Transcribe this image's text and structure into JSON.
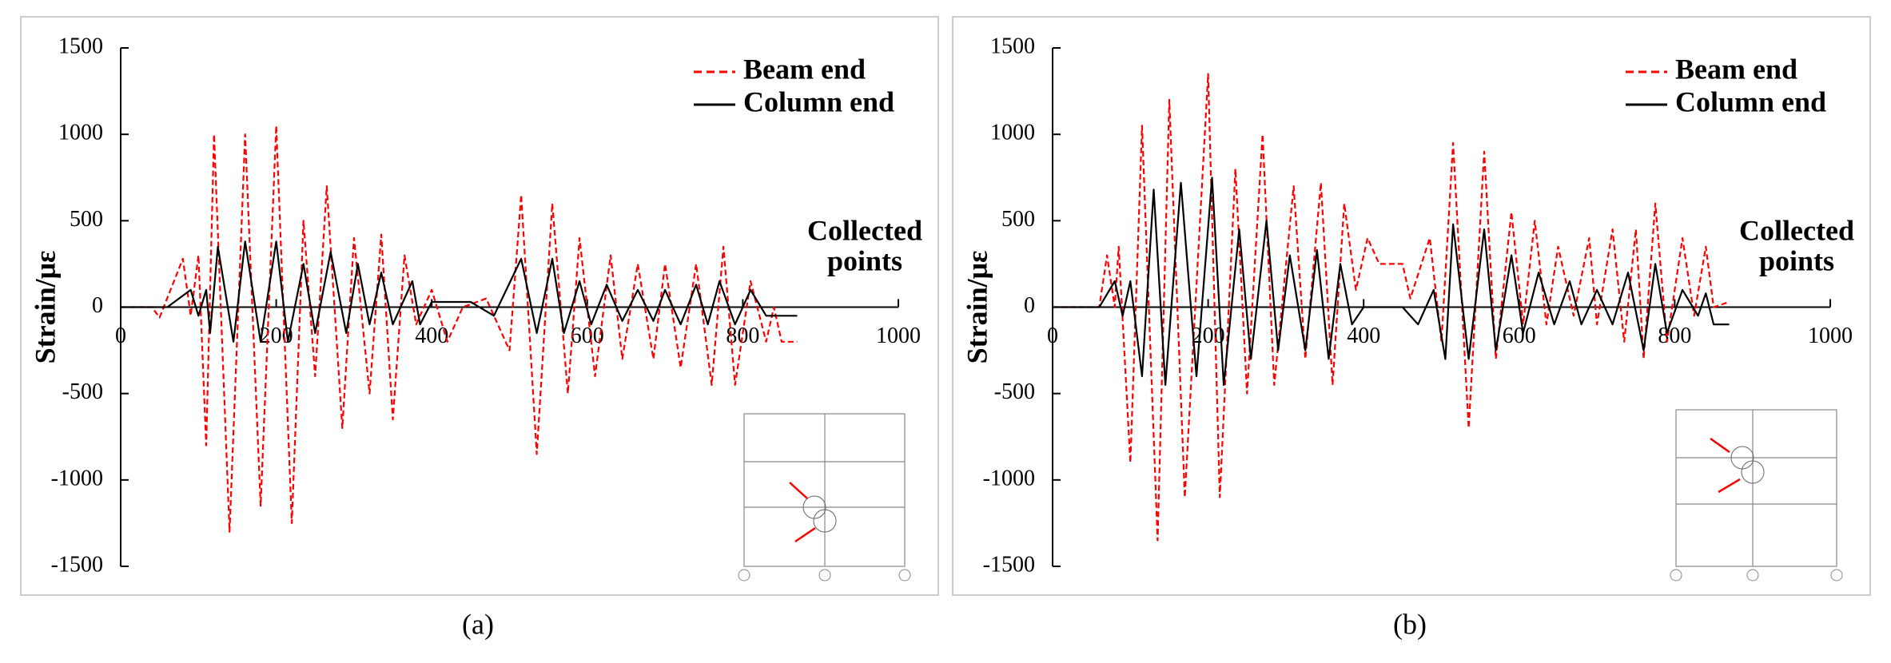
{
  "chart_data": [
    {
      "type": "line",
      "caption": "(a)",
      "ylabel": "Strain/με",
      "xlabel": [
        "Collected",
        "points"
      ],
      "xlim": [
        0,
        1000
      ],
      "xticks": [
        0,
        200,
        400,
        600,
        800,
        1000
      ],
      "ylim": [
        -1500,
        1500
      ],
      "yticks": [
        -1500,
        -1000,
        -500,
        0,
        500,
        1000,
        1500
      ],
      "series": [
        {
          "name": "Beam end",
          "color": "#ff0000",
          "dashed": true,
          "x": [
            0,
            40,
            50,
            80,
            90,
            100,
            110,
            120,
            140,
            160,
            180,
            200,
            220,
            235,
            250,
            265,
            285,
            300,
            320,
            335,
            350,
            365,
            380,
            400,
            420,
            440,
            470,
            500,
            515,
            535,
            555,
            575,
            590,
            610,
            630,
            645,
            665,
            685,
            700,
            720,
            740,
            760,
            775,
            790,
            810,
            830,
            840,
            850,
            870
          ],
          "values": [
            0,
            0,
            -60,
            280,
            -50,
            300,
            -800,
            1000,
            -1300,
            1000,
            -1150,
            1050,
            -1250,
            500,
            -400,
            700,
            -700,
            400,
            -500,
            420,
            -650,
            300,
            -100,
            100,
            -200,
            0,
            50,
            -250,
            650,
            -850,
            600,
            -500,
            400,
            -400,
            300,
            -300,
            250,
            -300,
            250,
            -350,
            250,
            -450,
            350,
            -450,
            150,
            -200,
            0,
            -200,
            -200
          ]
        },
        {
          "name": "Column end",
          "color": "#000000",
          "dashed": false,
          "x": [
            0,
            60,
            90,
            100,
            110,
            115,
            125,
            145,
            160,
            180,
            200,
            215,
            235,
            250,
            270,
            290,
            305,
            320,
            335,
            350,
            375,
            385,
            400,
            450,
            480,
            515,
            535,
            555,
            570,
            590,
            605,
            625,
            645,
            665,
            685,
            700,
            720,
            740,
            755,
            770,
            790,
            810,
            830,
            870
          ],
          "values": [
            0,
            0,
            100,
            -50,
            100,
            -150,
            350,
            -200,
            380,
            -200,
            380,
            -200,
            250,
            -150,
            320,
            -150,
            250,
            -100,
            200,
            -100,
            150,
            -100,
            30,
            30,
            -50,
            280,
            -150,
            280,
            -150,
            150,
            -100,
            130,
            -80,
            100,
            -80,
            100,
            -100,
            130,
            -100,
            150,
            -100,
            100,
            -50,
            -50
          ]
        }
      ]
    },
    {
      "type": "line",
      "caption": "(b)",
      "ylabel": "Strain/με",
      "xlabel": [
        "Collected",
        "points"
      ],
      "xlim": [
        0,
        1000
      ],
      "xticks": [
        0,
        200,
        400,
        600,
        800,
        1000
      ],
      "ylim": [
        -1500,
        1500
      ],
      "yticks": [
        -1500,
        -1000,
        -500,
        0,
        500,
        1000,
        1500
      ],
      "series": [
        {
          "name": "Beam end",
          "color": "#ff0000",
          "dashed": true,
          "x": [
            0,
            60,
            70,
            80,
            85,
            100,
            115,
            135,
            150,
            170,
            200,
            215,
            235,
            250,
            270,
            285,
            310,
            325,
            345,
            360,
            375,
            390,
            405,
            420,
            450,
            460,
            485,
            500,
            515,
            535,
            555,
            570,
            590,
            605,
            620,
            635,
            650,
            670,
            690,
            700,
            720,
            735,
            750,
            760,
            775,
            790,
            810,
            825,
            840,
            850,
            870
          ],
          "values": [
            0,
            0,
            300,
            0,
            350,
            -900,
            1050,
            -1350,
            1200,
            -1100,
            1350,
            -1100,
            800,
            -500,
            1000,
            -450,
            700,
            -300,
            720,
            -450,
            600,
            100,
            400,
            250,
            250,
            50,
            400,
            -200,
            950,
            -700,
            900,
            -300,
            550,
            -100,
            500,
            -100,
            350,
            -50,
            400,
            -100,
            450,
            -200,
            450,
            -300,
            600,
            -200,
            400,
            -50,
            350,
            0,
            30
          ]
        },
        {
          "name": "Column end",
          "color": "#000000",
          "dashed": false,
          "x": [
            0,
            60,
            80,
            90,
            100,
            115,
            130,
            145,
            165,
            185,
            205,
            220,
            240,
            255,
            275,
            290,
            305,
            325,
            340,
            355,
            370,
            385,
            400,
            450,
            470,
            490,
            505,
            515,
            535,
            555,
            570,
            590,
            605,
            625,
            645,
            665,
            680,
            700,
            720,
            740,
            760,
            775,
            790,
            810,
            830,
            840,
            850,
            870
          ],
          "values": [
            0,
            0,
            150,
            -50,
            150,
            -400,
            680,
            -450,
            720,
            -400,
            750,
            -450,
            450,
            -300,
            500,
            -250,
            300,
            -250,
            330,
            -300,
            250,
            -100,
            0,
            0,
            -100,
            100,
            -300,
            480,
            -300,
            450,
            -250,
            300,
            -150,
            200,
            -100,
            150,
            -100,
            100,
            -100,
            200,
            -250,
            250,
            -150,
            100,
            -50,
            80,
            -100,
            -100
          ]
        }
      ]
    }
  ]
}
